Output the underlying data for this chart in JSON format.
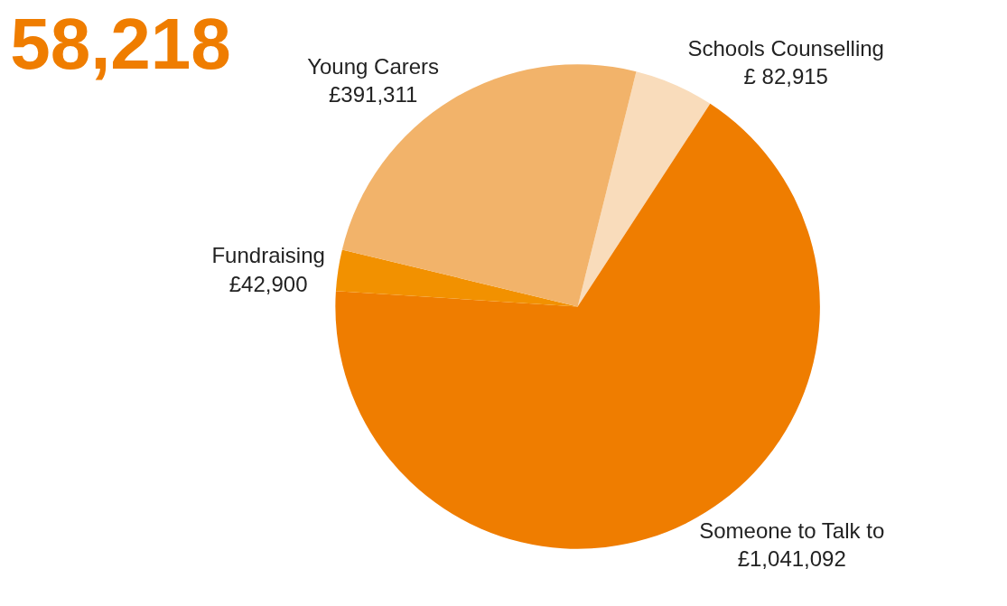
{
  "chart_data": {
    "type": "pie",
    "title": "58,218",
    "categories": [
      "Schools Counselling",
      "Someone to Talk to",
      "Fundraising",
      "Young Carers"
    ],
    "values": [
      82915,
      1041092,
      42900,
      391311
    ],
    "value_labels": [
      "£ 82,915",
      "£1,041,092",
      "£42,900",
      "£391,311"
    ],
    "colors": [
      "#f9dcbb",
      "#ef7d00",
      "#f29100",
      "#f2b36a"
    ],
    "legend": false
  }
}
